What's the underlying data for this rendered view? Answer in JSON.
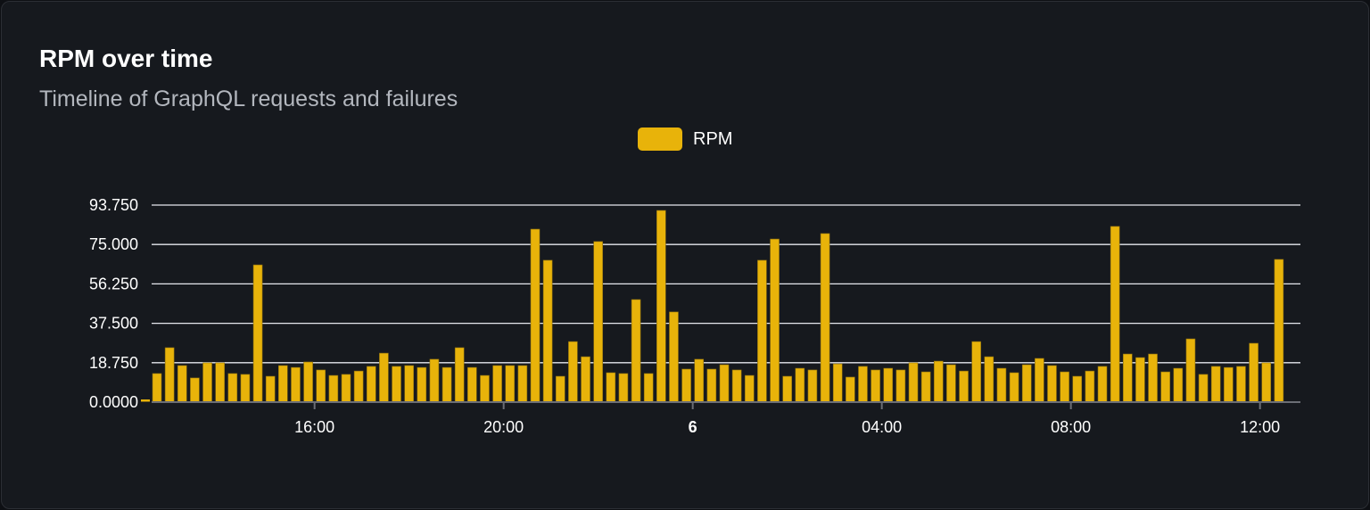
{
  "card": {
    "title": "RPM over time",
    "subtitle": "Timeline of GraphQL requests and failures"
  },
  "colors": {
    "background": "#16191e",
    "bar": "#e8b30a",
    "grid": "#e6e8ee",
    "axis": "#6b6e75"
  },
  "chart_data": {
    "type": "bar",
    "legend": {
      "position": "top",
      "entries": [
        "RPM"
      ]
    },
    "grid": true,
    "ylim": [
      0,
      93.75
    ],
    "y_ticks": [
      "0.0000",
      "18.750",
      "37.500",
      "56.250",
      "75.000",
      "93.750"
    ],
    "y_tick_values": [
      0,
      18.75,
      37.5,
      56.25,
      75,
      93.75
    ],
    "x_ticks": [
      {
        "label": "16:00",
        "time": "16:00",
        "bold": false
      },
      {
        "label": "20:00",
        "time": "20:00",
        "bold": false
      },
      {
        "label": "6",
        "time": "00:00",
        "bold": true
      },
      {
        "label": "04:00",
        "time": "04:00",
        "bold": false
      },
      {
        "label": "08:00",
        "time": "08:00",
        "bold": false
      },
      {
        "label": "12:00",
        "time": "12:00",
        "bold": false
      }
    ],
    "series": [
      {
        "name": "RPM",
        "x": [
          "12:40",
          "12:56",
          "13:12",
          "13:28",
          "13:44",
          "14:00",
          "14:16",
          "14:32",
          "14:48",
          "15:04",
          "15:20",
          "15:36",
          "15:52",
          "16:08",
          "16:24",
          "16:40",
          "16:56",
          "17:12",
          "17:28",
          "17:44",
          "18:00",
          "18:16",
          "18:32",
          "18:48",
          "19:04",
          "19:20",
          "19:36",
          "19:52",
          "20:08",
          "20:24",
          "20:40",
          "20:56",
          "21:12",
          "21:28",
          "21:44",
          "22:00",
          "22:16",
          "22:32",
          "22:48",
          "23:04",
          "23:20",
          "23:36",
          "23:52",
          "00:08",
          "00:24",
          "00:40",
          "00:56",
          "01:12",
          "01:28",
          "01:44",
          "02:00",
          "02:16",
          "02:32",
          "02:48",
          "03:04",
          "03:20",
          "03:36",
          "03:52",
          "04:08",
          "04:24",
          "04:40",
          "04:56",
          "05:12",
          "05:28",
          "05:44",
          "06:00",
          "06:16",
          "06:32",
          "06:48",
          "07:04",
          "07:20",
          "07:36",
          "07:52",
          "08:08",
          "08:24",
          "08:40",
          "08:56",
          "09:12",
          "09:28",
          "09:44",
          "10:00",
          "10:16",
          "10:32",
          "10:48",
          "11:04",
          "11:20",
          "11:36",
          "11:52",
          "12:08",
          "12:24"
        ],
        "values": [
          13.6,
          25.9,
          17.4,
          11.5,
          18.7,
          18.7,
          13.6,
          13.2,
          65.3,
          12.3,
          17.4,
          16.5,
          19.1,
          15.3,
          12.7,
          13.2,
          14.8,
          17.0,
          23.3,
          17.0,
          17.4,
          16.5,
          20.4,
          16.5,
          25.9,
          16.5,
          12.7,
          17.4,
          17.4,
          17.4,
          82.3,
          67.5,
          12.3,
          28.8,
          21.6,
          76.4,
          14.0,
          13.6,
          48.8,
          13.6,
          91.2,
          42.9,
          15.7,
          20.4,
          15.7,
          17.8,
          15.3,
          12.7,
          67.5,
          77.6,
          12.3,
          16.1,
          15.3,
          80.2,
          18.2,
          11.9,
          17.0,
          15.3,
          16.1,
          15.3,
          18.7,
          14.4,
          19.5,
          17.8,
          14.8,
          28.8,
          21.6,
          16.1,
          14.0,
          17.8,
          20.8,
          17.4,
          14.4,
          12.3,
          14.8,
          17.0,
          83.6,
          22.9,
          21.2,
          22.9,
          14.4,
          16.1,
          30.1,
          13.2,
          17.0,
          16.5,
          17.0,
          28.0,
          18.7,
          67.9
        ]
      }
    ]
  }
}
